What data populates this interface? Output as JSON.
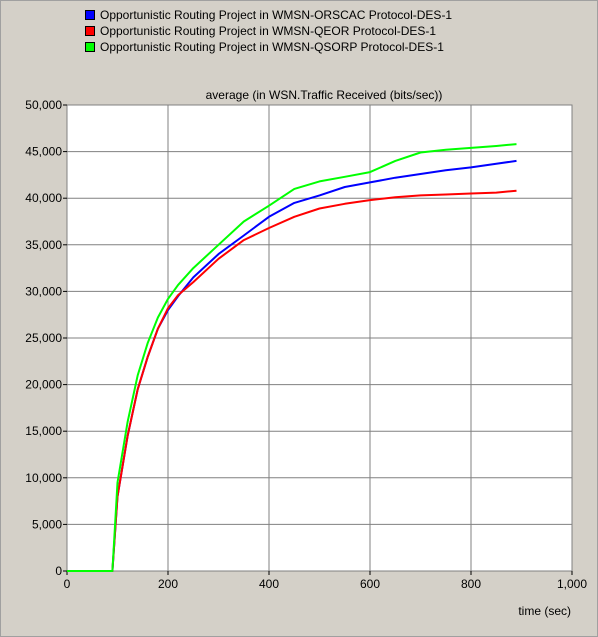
{
  "chart_data": {
    "type": "line",
    "title": "average (in WSN.Traffic Received (bits/sec))",
    "xlabel": "time (sec)",
    "ylabel": "",
    "xlim": [
      0,
      1000
    ],
    "ylim": [
      0,
      50000
    ],
    "x_ticks": [
      0,
      200,
      400,
      600,
      800,
      1000
    ],
    "x_tick_labels": [
      "0",
      "200",
      "400",
      "600",
      "800",
      "1,000"
    ],
    "y_ticks": [
      0,
      5000,
      10000,
      15000,
      20000,
      25000,
      30000,
      35000,
      40000,
      45000,
      50000
    ],
    "y_tick_labels": [
      "0",
      "5,000",
      "10,000",
      "15,000",
      "20,000",
      "25,000",
      "30,000",
      "35,000",
      "40,000",
      "45,000",
      "50,000"
    ],
    "grid": true,
    "legend_position": "top",
    "x": [
      0,
      90,
      100,
      120,
      140,
      160,
      180,
      200,
      220,
      250,
      300,
      350,
      400,
      450,
      500,
      550,
      600,
      650,
      700,
      750,
      800,
      850,
      890
    ],
    "series": [
      {
        "name": "Opportunistic Routing Project in WMSN-ORSCAC Protocol-DES-1",
        "color": "#0000ff",
        "values": [
          0,
          0,
          8000,
          14500,
          19500,
          23000,
          26000,
          28000,
          29500,
          31500,
          34000,
          36000,
          38000,
          39500,
          40300,
          41200,
          41700,
          42200,
          42600,
          43000,
          43300,
          43700,
          44000
        ]
      },
      {
        "name": "Opportunistic Routing Project in WMSN-QEOR Protocol-DES-1",
        "color": "#ff0000",
        "values": [
          0,
          0,
          8000,
          14500,
          19500,
          23000,
          26000,
          28200,
          29600,
          31000,
          33500,
          35500,
          36800,
          38000,
          38900,
          39400,
          39800,
          40100,
          40300,
          40400,
          40500,
          40600,
          40800
        ]
      },
      {
        "name": "Opportunistic Routing Project in WMSN-QSORP Protocol-DES-1",
        "color": "#00ff00",
        "values": [
          0,
          0,
          9500,
          16000,
          21000,
          24500,
          27200,
          29200,
          30700,
          32500,
          35000,
          37500,
          39200,
          41000,
          41800,
          42300,
          42800,
          44000,
          44900,
          45200,
          45400,
          45600,
          45800
        ]
      }
    ]
  }
}
